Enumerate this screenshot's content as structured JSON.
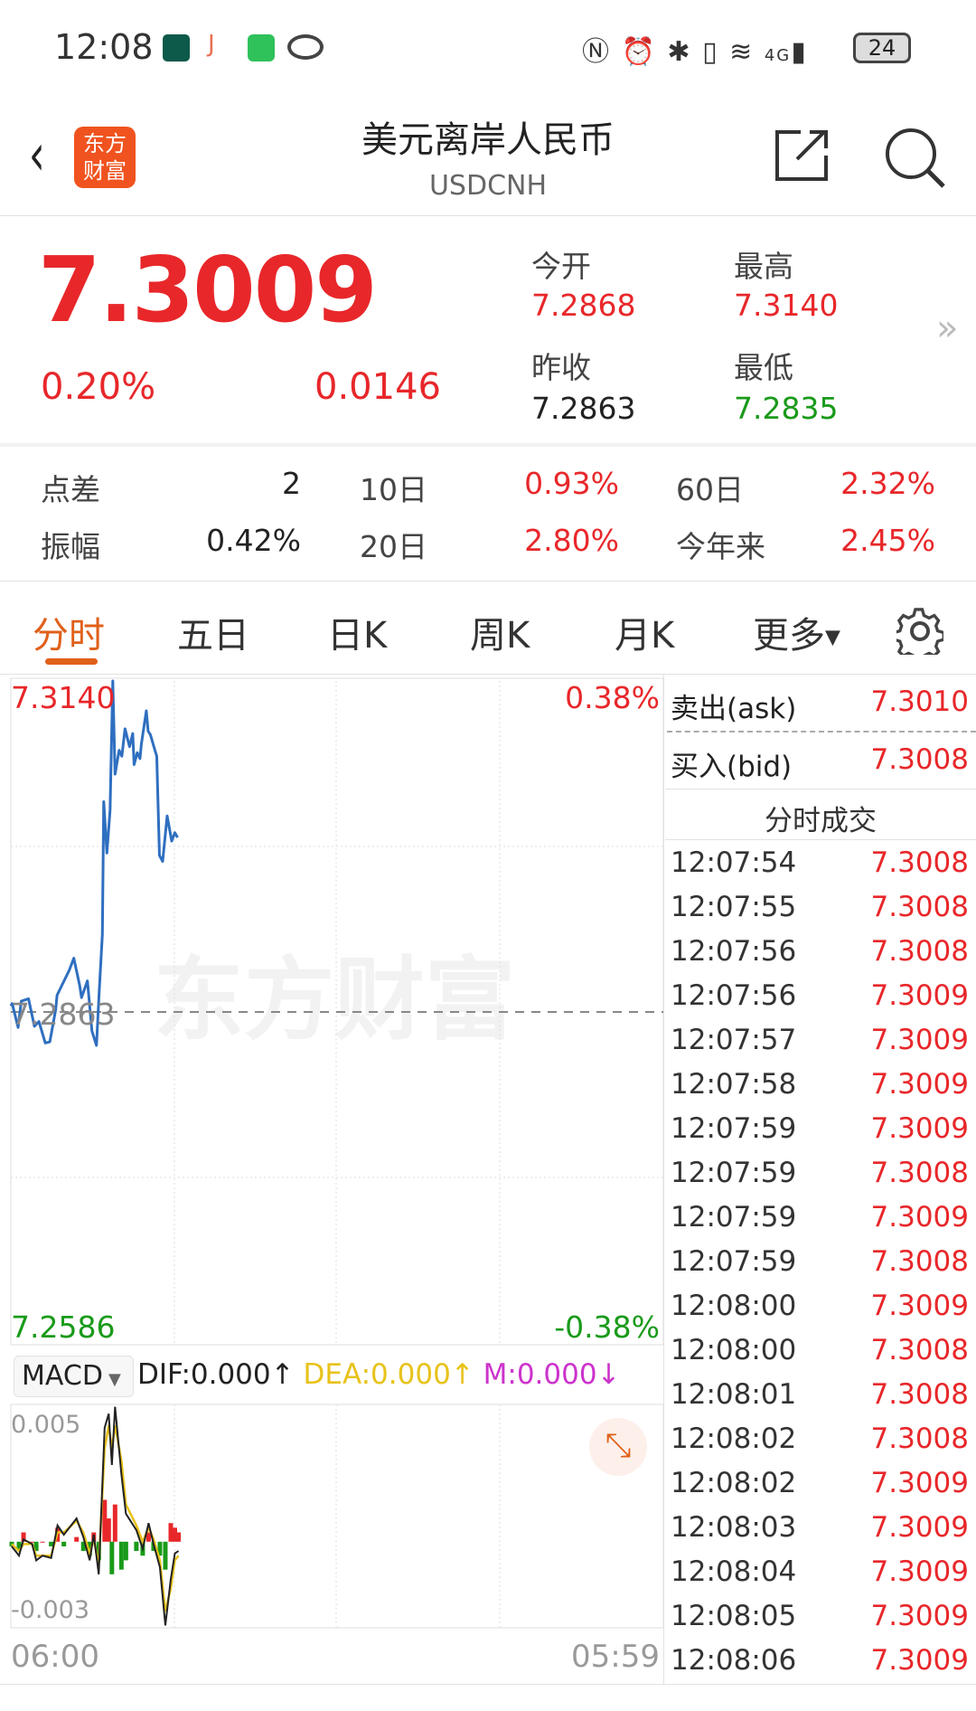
{
  "status_bar": {
    "time": "12:08",
    "battery": "24",
    "network": "4G",
    "icons": [
      "app-icon-dark-green",
      "app-icon-j",
      "wechat-icon",
      "eye-icon",
      "nfc-icon",
      "alarm-icon",
      "bluetooth-icon",
      "vibrate-icon",
      "wifi-icon",
      "signal-icon",
      "battery-icon"
    ]
  },
  "header": {
    "title": "美元离岸人民币",
    "subtitle": "USDCNH",
    "logo": "东方财富"
  },
  "quote": {
    "price": "7.3009",
    "change_pct": "0.20%",
    "change": "0.0146",
    "open_label": "今开",
    "open": "7.2868",
    "high_label": "最高",
    "high": "7.3140",
    "prev_close_label": "昨收",
    "prev_close": "7.2863",
    "low_label": "最低",
    "low": "7.2835"
  },
  "stats": [
    {
      "label": "点差",
      "value": "2",
      "label2": "10日",
      "value2": "0.93%",
      "label3": "60日",
      "value3": "2.32%"
    },
    {
      "label": "振幅",
      "value": "0.42%",
      "label2": "20日",
      "value2": "2.80%",
      "label3": "今年来",
      "value3": "2.45%"
    }
  ],
  "tabs": [
    {
      "label": "分时",
      "active": true
    },
    {
      "label": "五日"
    },
    {
      "label": "日K"
    },
    {
      "label": "周K"
    },
    {
      "label": "月K"
    },
    {
      "label": "更多"
    }
  ],
  "colors": {
    "up": "#e8272a",
    "down": "#1a9a1a",
    "line": "#2f6fc0",
    "accent": "#e0601a",
    "dif": "#222222",
    "dea": "#e8c21a",
    "m": "#cc33cc"
  },
  "watermark": "东方财富",
  "chart_data": [
    {
      "type": "line",
      "ylim": [
        7.2586,
        7.314
      ],
      "y_ticks_left": [
        "7.3140",
        "7.2863",
        "7.2586"
      ],
      "y_ticks_right": [
        "0.38%",
        "-0.38%"
      ],
      "x_ticks": [
        "06:00",
        "05:59"
      ],
      "reference": 7.2863,
      "x_range": [
        "06:00",
        "05:59"
      ],
      "x": [
        "06:00",
        "06:03",
        "06:16",
        "06:23",
        "06:39",
        "06:52",
        "07:02",
        "07:16",
        "07:26",
        "07:39",
        "07:42",
        "08:09",
        "08:19",
        "08:32",
        "08:36",
        "08:49",
        "08:59",
        "09:09",
        "09:15",
        "09:22",
        "09:25",
        "09:32",
        "09:39",
        "09:45",
        "09:50",
        "09:59",
        "10:05",
        "10:12",
        "10:22",
        "10:29",
        "10:32",
        "10:39",
        "10:45",
        "10:48",
        "10:59",
        "11:03",
        "11:08",
        "11:18",
        "11:22",
        "11:28",
        "11:35",
        "11:45",
        "11:55",
        "12:02",
        "12:08"
      ],
      "values": [
        7.2868,
        7.287,
        7.285,
        7.2872,
        7.2874,
        7.2851,
        7.2855,
        7.2837,
        7.2838,
        7.2865,
        7.2877,
        7.2898,
        7.2908,
        7.2885,
        7.2875,
        7.2889,
        7.2847,
        7.2835,
        7.288,
        7.2928,
        7.3039,
        7.2996,
        7.3032,
        7.314,
        7.3062,
        7.3082,
        7.3077,
        7.31,
        7.3085,
        7.3096,
        7.307,
        7.308,
        7.3075,
        7.3087,
        7.3115,
        7.3098,
        7.3095,
        7.3082,
        7.3077,
        7.2994,
        7.2989,
        7.3027,
        7.3006,
        7.3013,
        7.3009
      ]
    },
    {
      "type": "macd",
      "indicator": "MACD",
      "dif_label": "DIF:0.000",
      "dif_arrow": "↑",
      "dea_label": "DEA:0.000",
      "dea_arrow": "↑",
      "m_label": "M:0.000",
      "m_arrow": "↓",
      "y_ticks": [
        "0.005",
        "-0.003"
      ],
      "ylim": [
        -0.0037,
        0.0059
      ],
      "x": [
        "06:02",
        "06:18",
        "06:28",
        "06:47",
        "06:56",
        "07:10",
        "07:29",
        "07:43",
        "07:57",
        "08:25",
        "08:40",
        "08:54",
        "09:03",
        "09:14",
        "09:27",
        "09:36",
        "09:43",
        "09:50",
        "10:04",
        "10:14",
        "10:37",
        "10:51",
        "11:04",
        "11:15",
        "11:29",
        "11:41",
        "11:53",
        "12:02",
        "12:10"
      ],
      "dif": [
        -0.0002,
        -0.0006,
        0.0001,
        -0.0001,
        -0.0008,
        -0.0006,
        -0.0007,
        0.0007,
        0.0003,
        0.001,
        0.0002,
        -0.0008,
        0.0003,
        -0.0014,
        0.0049,
        0.0055,
        0.0033,
        0.0058,
        0.0029,
        0.0012,
        0.0005,
        -0.0003,
        0.0008,
        -0.0001,
        -0.0011,
        -0.0036,
        -0.0016,
        -0.0005,
        -0.0004
      ],
      "dea": [
        -0.0001,
        -0.0004,
        -0.0001,
        -0.0001,
        -0.0006,
        -0.0006,
        -0.0006,
        0.0004,
        0.0004,
        0.0009,
        0.0004,
        -0.0005,
        0.0001,
        -0.001,
        0.004,
        0.005,
        0.004,
        0.005,
        0.0035,
        0.0016,
        0.0007,
        0.0,
        0.0006,
        0.0001,
        -0.0008,
        -0.003,
        -0.002,
        -0.0008,
        -0.0006
      ],
      "m": [
        -0.0002,
        -0.0004,
        0.0004,
        0.0,
        -0.0004,
        0.0,
        -0.0002,
        0.0006,
        -0.0002,
        0.0002,
        -0.0004,
        -0.0006,
        0.0004,
        -0.0008,
        0.0018,
        0.001,
        -0.0014,
        0.0016,
        -0.0012,
        -0.0008,
        -0.0004,
        -0.0006,
        0.0004,
        -0.0004,
        -0.0006,
        -0.0012,
        0.0008,
        0.0006,
        0.0004
      ]
    }
  ],
  "orderbook": {
    "ask_label": "卖出(ask)",
    "ask": "7.3010",
    "bid_label": "买入(bid)",
    "bid": "7.3008",
    "trades_title": "分时成交"
  },
  "trades": [
    {
      "time": "12:07:54",
      "price": "7.3008"
    },
    {
      "time": "12:07:55",
      "price": "7.3008"
    },
    {
      "time": "12:07:56",
      "price": "7.3008"
    },
    {
      "time": "12:07:56",
      "price": "7.3009"
    },
    {
      "time": "12:07:57",
      "price": "7.3009"
    },
    {
      "time": "12:07:58",
      "price": "7.3009"
    },
    {
      "time": "12:07:59",
      "price": "7.3009"
    },
    {
      "time": "12:07:59",
      "price": "7.3008"
    },
    {
      "time": "12:07:59",
      "price": "7.3009"
    },
    {
      "time": "12:07:59",
      "price": "7.3008"
    },
    {
      "time": "12:08:00",
      "price": "7.3009"
    },
    {
      "time": "12:08:00",
      "price": "7.3008"
    },
    {
      "time": "12:08:01",
      "price": "7.3008"
    },
    {
      "time": "12:08:02",
      "price": "7.3008"
    },
    {
      "time": "12:08:02",
      "price": "7.3009"
    },
    {
      "time": "12:08:03",
      "price": "7.3009"
    },
    {
      "time": "12:08:04",
      "price": "7.3009"
    },
    {
      "time": "12:08:05",
      "price": "7.3009"
    },
    {
      "time": "12:08:06",
      "price": "7.3009"
    }
  ]
}
